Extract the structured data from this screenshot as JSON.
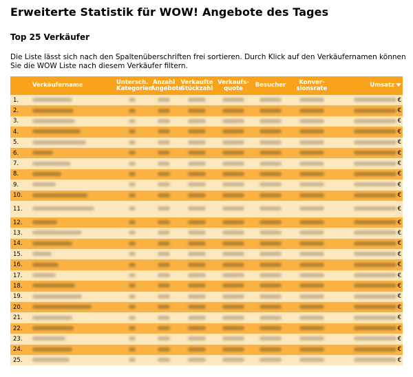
{
  "page": {
    "title": "Erweiterte Statistik für WOW! Angebote des Tages",
    "subtitle": "Top 25 Verkäufer",
    "intro_line1": "Die Liste lässt sich nach den Spaltenüberschriften frei sortieren. Durch Klick auf den Verkäufernamen können",
    "intro_line2": "Sie die WOW Liste nach diesem Verkäufer filtern."
  },
  "table": {
    "headers": {
      "name": "Verkäufername",
      "kategorien_1": "Untersch.",
      "kategorien_2": "Kategorien",
      "angebote_1": "Anzahl",
      "angebote_2": "Angebote",
      "stueckzahl_1": "Verkaufte",
      "stueckzahl_2": "Stückzahl",
      "quote_1": "Verkaufs-",
      "quote_2": "quote",
      "besucher": "Besucher",
      "konversion_1": "Konver-",
      "konversion_2": "sionsrate",
      "umsatz": "Umsatz"
    },
    "sort": {
      "column": "Umsatz",
      "direction": "descending"
    },
    "currency": "€",
    "rows": [
      {
        "rank": "1."
      },
      {
        "rank": "2."
      },
      {
        "rank": "3."
      },
      {
        "rank": "4."
      },
      {
        "rank": "5."
      },
      {
        "rank": "6."
      },
      {
        "rank": "7."
      },
      {
        "rank": "8."
      },
      {
        "rank": "9."
      },
      {
        "rank": "10."
      },
      {
        "rank": "11."
      },
      {
        "rank": "12."
      },
      {
        "rank": "13."
      },
      {
        "rank": "14."
      },
      {
        "rank": "15."
      },
      {
        "rank": "16."
      },
      {
        "rank": "17."
      },
      {
        "rank": "18."
      },
      {
        "rank": "19."
      },
      {
        "rank": "20."
      },
      {
        "rank": "21."
      },
      {
        "rank": "22."
      },
      {
        "rank": "23."
      },
      {
        "rank": "24."
      },
      {
        "rank": "25."
      }
    ],
    "colors": {
      "header": "#f9a21b",
      "row_light": "#fde7bd",
      "row_dark": "#fbb243"
    }
  }
}
